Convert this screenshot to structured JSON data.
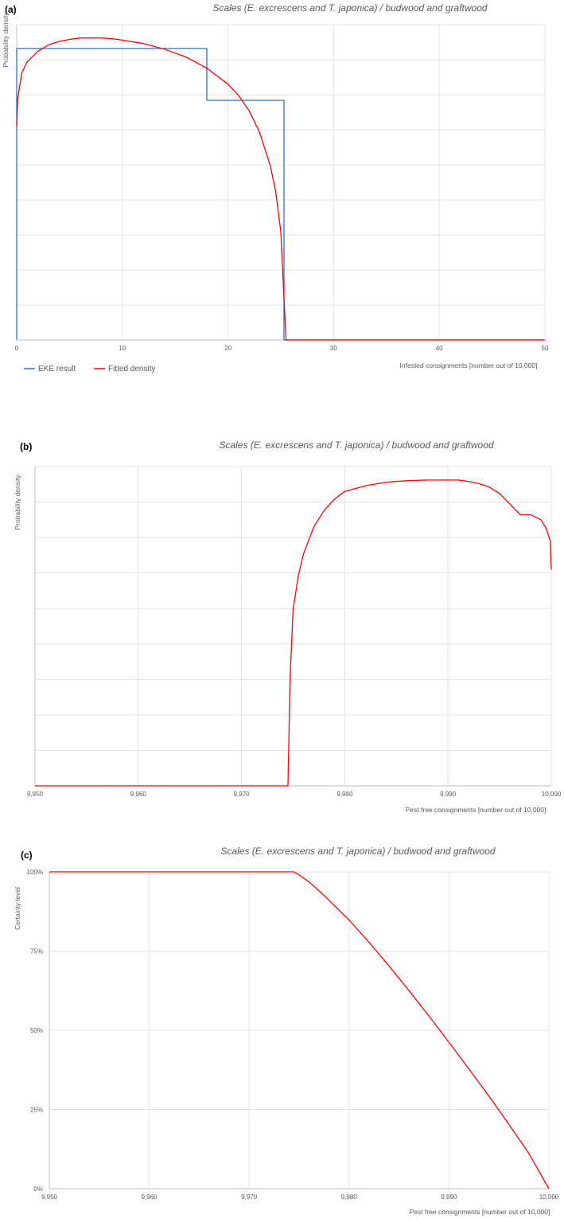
{
  "chart_data": [
    {
      "panel": "(a)",
      "type": "line",
      "title": "Scales (E. excrescens and T. japonica) / budwood and graftwood",
      "xlabel": "Infested consignments [number out of 10,000]",
      "ylabel": "Probability density",
      "xlim": [
        0,
        50
      ],
      "xticks": [
        "0",
        "10",
        "20",
        "30",
        "40",
        "50"
      ],
      "ytick_count": 9,
      "grid": true,
      "legend": "bottom-left",
      "series": [
        {
          "name": "EKE result",
          "color": "#2e75b6",
          "kind": "step",
          "x": [
            0,
            0,
            18,
            18,
            25.3,
            25.3,
            50
          ],
          "y": [
            0,
            0.0416,
            0.0416,
            0.0342,
            0.0342,
            0,
            0
          ]
        },
        {
          "name": "Fitted density",
          "color": "#ff0000",
          "kind": "curve",
          "x": [
            0,
            0.1,
            0.5,
            1,
            2,
            3,
            4,
            5,
            6,
            7,
            8,
            9,
            10,
            12,
            14,
            16,
            18,
            20,
            21,
            22,
            23,
            24,
            24.5,
            25,
            25.3,
            25.5,
            26,
            50
          ],
          "y": [
            0.0305,
            0.0345,
            0.0382,
            0.0397,
            0.0412,
            0.0421,
            0.0426,
            0.0429,
            0.0431,
            0.0431,
            0.0431,
            0.043,
            0.0428,
            0.0423,
            0.0415,
            0.0404,
            0.0388,
            0.0365,
            0.0349,
            0.0327,
            0.0296,
            0.0249,
            0.0213,
            0.0155,
            0.006,
            0.0,
            0.0,
            0.0
          ]
        }
      ]
    },
    {
      "panel": "(b)",
      "type": "line",
      "title": "Scales (E. excrescens and T. japonica) / budwood and graftwood",
      "xlabel": "Pest free consignments [number out of 10,000]",
      "ylabel": "Probability density",
      "xlim": [
        9950,
        10000
      ],
      "xticks": [
        "9,950",
        "9,960",
        "9,970",
        "9,980",
        "9,990",
        "10,000"
      ],
      "ytick_count": 9,
      "grid": true,
      "series": [
        {
          "color": "#ff0000",
          "x": [
            9950,
            9974.5,
            9974.7,
            9975,
            9975.5,
            9976,
            9977,
            9978,
            9979,
            9980,
            9982,
            9984,
            9986,
            9988,
            9990,
            9991,
            9992,
            9993,
            9994,
            9995,
            9996,
            9997,
            9998,
            9999,
            9999.5,
            9999.9,
            10000
          ],
          "y": [
            0.0,
            0.0,
            0.015,
            0.0249,
            0.0296,
            0.0327,
            0.0365,
            0.0388,
            0.0404,
            0.0415,
            0.0423,
            0.0428,
            0.043,
            0.0431,
            0.0431,
            0.0431,
            0.0429,
            0.0426,
            0.0421,
            0.0412,
            0.0397,
            0.0382,
            0.0382,
            0.0375,
            0.0363,
            0.0345,
            0.0305
          ]
        }
      ]
    },
    {
      "panel": "(c)",
      "type": "line",
      "title": "Scales (E. excrescens and T. japonica) / budwood and graftwood",
      "xlabel": "Pest free consignments [number out of 10,000]",
      "ylabel": "Certainty level",
      "xlim": [
        9950,
        10000
      ],
      "ylim": [
        0,
        1
      ],
      "xticks": [
        "9,950",
        "9,960",
        "9,970",
        "9,980",
        "9,990",
        "10,000"
      ],
      "yticks": [
        "0%",
        "25%",
        "50%",
        "75%",
        "100%"
      ],
      "grid": true,
      "series": [
        {
          "color": "#ff0000",
          "x": [
            9950,
            9974.5,
            9975,
            9976,
            9977,
            9978,
            9980,
            9982,
            9984,
            9986,
            9988,
            9990,
            9992,
            9994,
            9996,
            9998,
            10000
          ],
          "y": [
            1.0,
            1.0,
            0.99,
            0.968,
            0.94,
            0.91,
            0.848,
            0.778,
            0.703,
            0.625,
            0.545,
            0.462,
            0.378,
            0.292,
            0.203,
            0.111,
            0.0
          ]
        }
      ]
    }
  ]
}
